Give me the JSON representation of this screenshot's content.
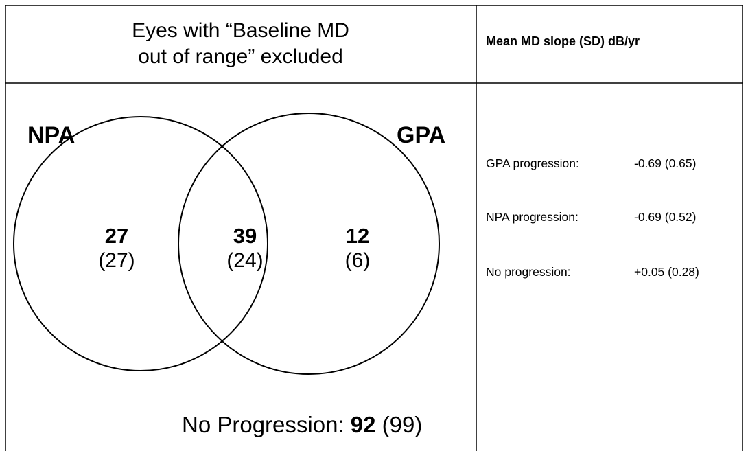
{
  "header": {
    "left_line1": "Eyes with “Baseline MD",
    "left_line2": "out of range” excluded",
    "right": "Mean MD slope (SD) dB/yr"
  },
  "venn": {
    "left_set": "NPA",
    "right_set": "GPA",
    "npa_only": {
      "value": "27",
      "paren": "(27)"
    },
    "both": {
      "value": "39",
      "paren": "(24)"
    },
    "gpa_only": {
      "value": "12",
      "paren": "(6)"
    },
    "no_progression": {
      "label": "No Progression:",
      "value": "92",
      "paren": "(99)"
    }
  },
  "slopes": [
    {
      "label": "GPA progression:",
      "value": "-0.69 (0.65)"
    },
    {
      "label": "NPA progression:",
      "value": "-0.69 (0.52)"
    },
    {
      "label": "No progression:",
      "value": "+0.05 (0.28)"
    }
  ]
}
